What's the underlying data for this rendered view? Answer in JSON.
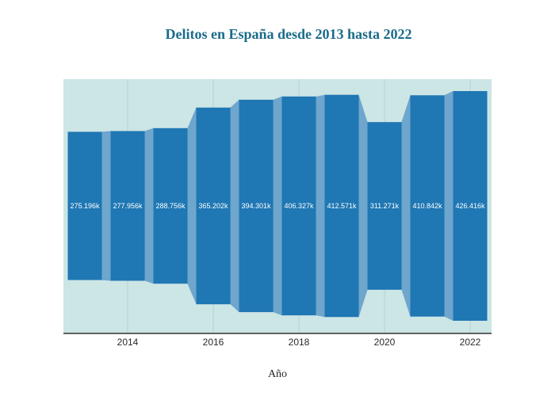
{
  "chart_data": {
    "type": "bar",
    "subtype": "funnel",
    "title": "Delitos en España desde 2013 hasta 2022",
    "xlabel": "Año",
    "ylabel": "",
    "categories": [
      2013,
      2014,
      2015,
      2016,
      2017,
      2018,
      2019,
      2020,
      2021,
      2022
    ],
    "values": [
      275196,
      277956,
      288756,
      365202,
      394301,
      406327,
      412571,
      311271,
      410842,
      426416
    ],
    "data_labels": [
      "275.196k",
      "277.956k",
      "288.756k",
      "365.202k",
      "394.301k",
      "406.327k",
      "412.571k",
      "311.271k",
      "410.842k",
      "426.416k"
    ],
    "x_ticks": [
      2014,
      2016,
      2018,
      2020,
      2022
    ],
    "xlim": [
      2012.5,
      2022.5
    ],
    "grid": true,
    "colors": {
      "bar": "#1f77b4",
      "connector": "#6ea6cd",
      "plot_background": "#cce5e5",
      "title": "#1a6b8a",
      "grid": "#b4d2d2",
      "axis_line": "#333333"
    }
  }
}
